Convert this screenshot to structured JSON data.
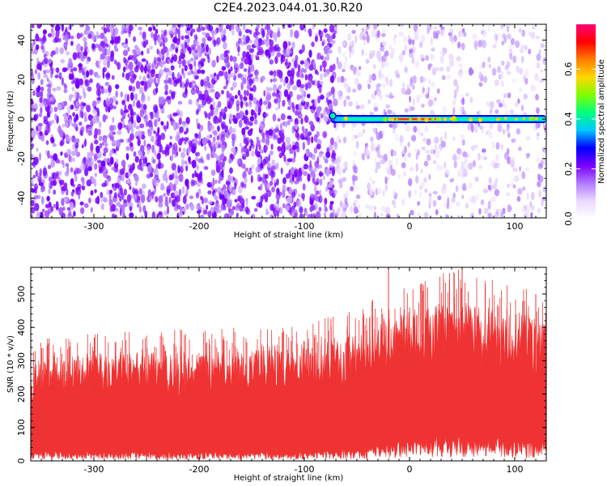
{
  "title": "C2E4.2023.044.01.30.R20",
  "chart_data": [
    {
      "type": "heatmap",
      "xlabel": "Height of straight line (km)",
      "ylabel": "Frequency (Hz)",
      "xlim": [
        -360,
        130
      ],
      "ylim": [
        -50,
        48
      ],
      "x_ticks": [
        -300,
        -200,
        -100,
        0,
        100
      ],
      "y_ticks": [
        -40,
        -20,
        0,
        20,
        40
      ],
      "colorbar": {
        "label": "Normalized spectral amplitude",
        "range": [
          0,
          0.78
        ],
        "ticks": [
          0.0,
          0.2,
          0.4,
          0.6
        ],
        "colormap": [
          "#ffffff",
          "#ead9ff",
          "#b27bff",
          "#7a00ff",
          "#0000ff",
          "#00c8ff",
          "#00ff7f",
          "#7fff00",
          "#ffd700",
          "#ff7f00",
          "#ff0000",
          "#ff0077"
        ]
      },
      "features": {
        "dense_noise_x_range": [
          -360,
          -70
        ],
        "sparse_noise_x_range": [
          -70,
          130
        ],
        "signal_band_frequency_hz": 0,
        "signal_band_x_range": [
          -75,
          130
        ],
        "signal_peak_x_range": [
          -20,
          30
        ]
      }
    },
    {
      "type": "area",
      "xlabel": "Height of straight line (km)",
      "ylabel": "SNR (10 * v/v)",
      "xlim": [
        -360,
        130
      ],
      "ylim": [
        0,
        580
      ],
      "x_ticks": [
        -300,
        -200,
        -100,
        0,
        100
      ],
      "y_ticks": [
        0,
        100,
        200,
        300,
        400,
        500
      ],
      "color": "#ef3333",
      "envelope": {
        "x": [
          -360,
          -300,
          -200,
          -100,
          -50,
          -25,
          0,
          50,
          100,
          130
        ],
        "lower": [
          20,
          20,
          18,
          18,
          25,
          35,
          45,
          55,
          45,
          40
        ],
        "upper": [
          300,
          320,
          330,
          340,
          380,
          420,
          450,
          480,
          440,
          430
        ]
      },
      "notable_peaks": [
        {
          "x": -20,
          "y": 580
        },
        {
          "x": 17,
          "y": 520
        },
        {
          "x": 38,
          "y": 540
        },
        {
          "x": 50,
          "y": 575
        },
        {
          "x": 120,
          "y": 500
        }
      ]
    }
  ]
}
